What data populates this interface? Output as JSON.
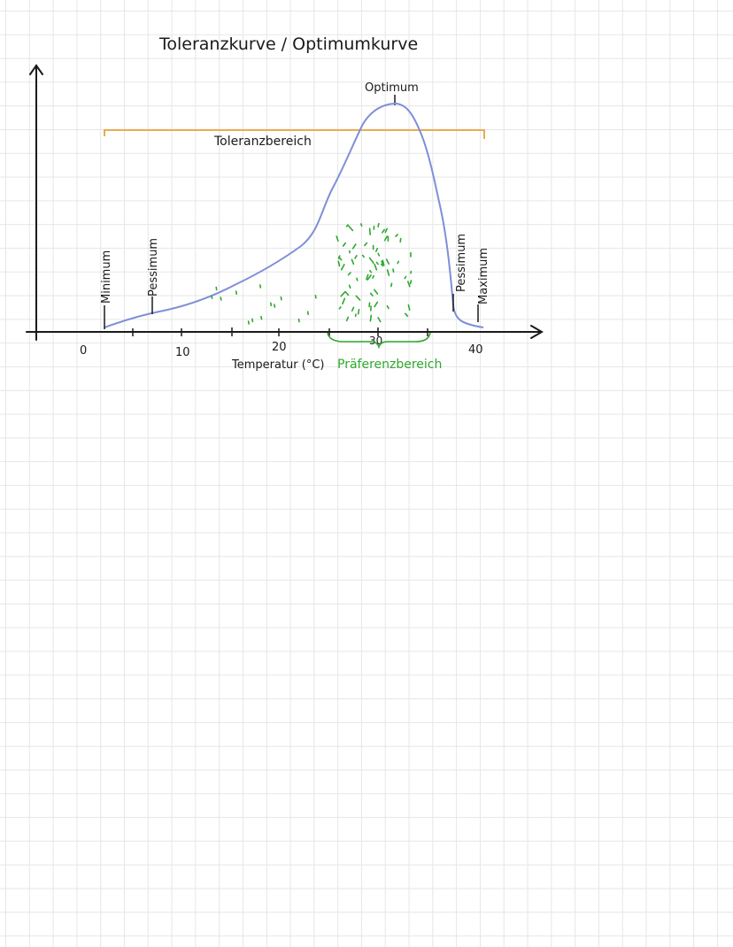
{
  "title": "Toleranzkurve / Optimumkurve",
  "labels": {
    "optimum": "Optimum",
    "toleranzbereich": "Toleranzbereich",
    "minimum": "Minimum",
    "pessimum_left": "Pessimum",
    "pessimum_right": "Pessimum",
    "maximum": "Maximum",
    "x_axis": "Temperatur (°C)",
    "praeferenzbereich": "Präferenzbereich"
  },
  "x_ticks": [
    "0",
    "10",
    "20",
    "30",
    "40"
  ],
  "colors": {
    "curve": "#7f8fd6",
    "tolerance_bracket": "#e8a23a",
    "preference": "#2ea82e",
    "ink": "#1a1a1a"
  },
  "chart_data": {
    "type": "line",
    "title": "Toleranzkurve / Optimumkurve",
    "xlabel": "Temperatur (°C)",
    "ylabel": "",
    "xlim": [
      0,
      40
    ],
    "x_ticks": [
      0,
      10,
      20,
      30,
      40
    ],
    "series": [
      {
        "x": [
          2,
          5,
          10,
          15,
          20,
          25,
          28,
          30,
          32,
          34,
          36,
          38,
          40
        ],
        "values": [
          0.0,
          0.06,
          0.12,
          0.25,
          0.42,
          0.68,
          0.95,
          1.08,
          1.1,
          0.9,
          0.4,
          0.05,
          0.0
        ]
      }
    ],
    "annotations": {
      "minimum_x": 2,
      "pessimum_left_x": 7,
      "optimum_x": 32,
      "pessimum_right_x": 38,
      "maximum_x": 40,
      "toleranzbereich": [
        2,
        40
      ],
      "praeferenzbereich": [
        26,
        36
      ]
    }
  }
}
